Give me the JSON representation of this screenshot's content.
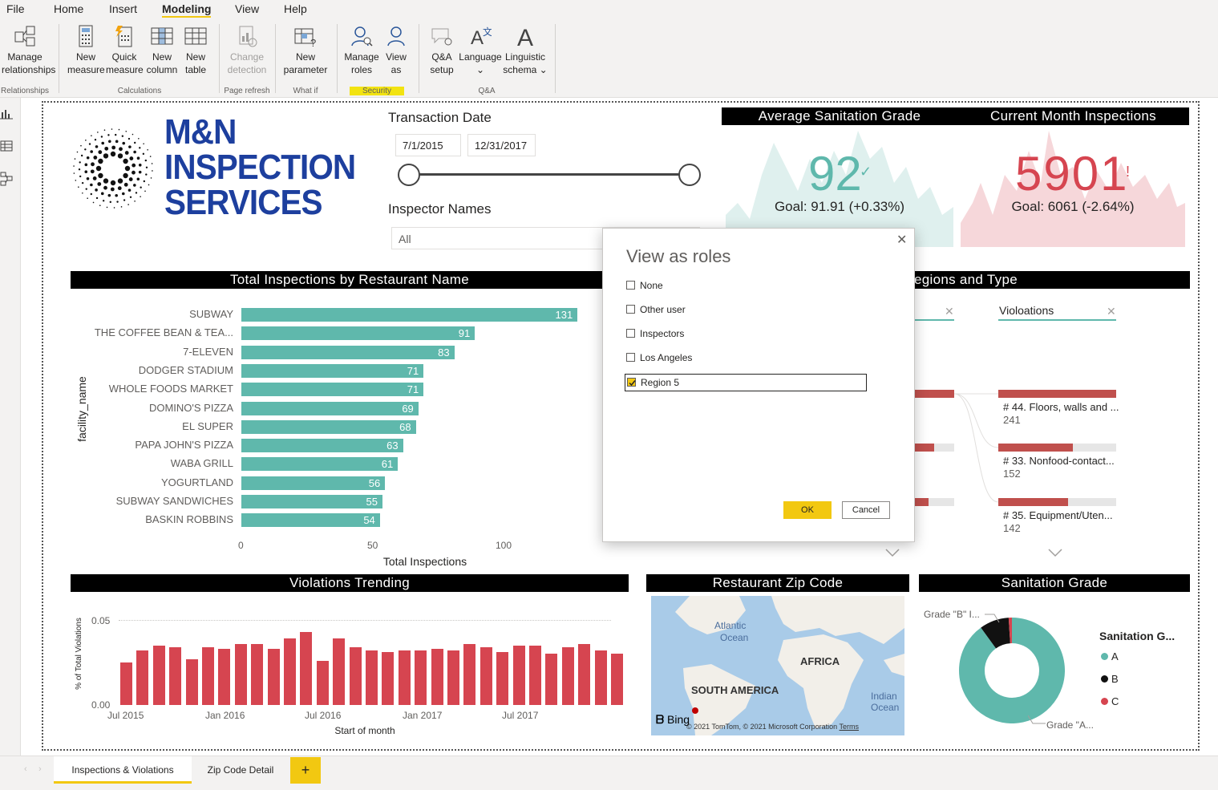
{
  "menu": [
    "File",
    "Home",
    "Insert",
    "Modeling",
    "View",
    "Help"
  ],
  "menu_active": "Modeling",
  "ribbon": {
    "buttons": [
      {
        "l1": "Manage",
        "l2": "relationships"
      },
      {
        "l1": "New",
        "l2": "measure"
      },
      {
        "l1": "Quick",
        "l2": "measure"
      },
      {
        "l1": "New",
        "l2": "column"
      },
      {
        "l1": "New",
        "l2": "table"
      },
      {
        "l1": "Change",
        "l2": "detection"
      },
      {
        "l1": "New",
        "l2": "parameter"
      },
      {
        "l1": "Manage",
        "l2": "roles"
      },
      {
        "l1": "View",
        "l2": "as"
      },
      {
        "l1": "Q&A",
        "l2": "setup"
      },
      {
        "l1": "Language",
        "l2": "⌄"
      },
      {
        "l1": "Linguistic",
        "l2": "schema ⌄"
      }
    ],
    "groups": [
      "Relationships",
      "Calculations",
      "Page refresh",
      "What if",
      "Security",
      "Q&A"
    ]
  },
  "logo": {
    "line1": "M&N",
    "line2": "INSPECTION",
    "line3": "SERVICES"
  },
  "slicers": {
    "date_title": "Transaction Date",
    "date_start": "7/1/2015",
    "date_end": "12/31/2017",
    "inspector_title": "Inspector Names",
    "inspector_value": "All"
  },
  "kpi1": {
    "title": "Average Sanitation Grade",
    "value": "92",
    "goal": "Goal: 91.91 (+0.33%)"
  },
  "kpi2": {
    "title": "Current Month Inspections",
    "value": "5901",
    "alert": "!",
    "goal": "Goal: 6061 (-2.64%)"
  },
  "restaurants": {
    "title": "Total Inspections by Restaurant Name",
    "ylabel": "facility_name",
    "xlabel": "Total Inspections",
    "ticks": [
      "0",
      "50",
      "100"
    ],
    "chart_data": {
      "type": "bar",
      "categories": [
        "SUBWAY",
        "THE COFFEE BEAN & TEA...",
        "7-ELEVEN",
        "DODGER STADIUM",
        "WHOLE FOODS MARKET",
        "DOMINO'S PIZZA",
        "EL SUPER",
        "PAPA JOHN'S PIZZA",
        "WABA GRILL",
        "YOGURTLAND",
        "SUBWAY SANDWICHES",
        "BASKIN ROBBINS"
      ],
      "values": [
        131,
        91,
        83,
        71,
        71,
        69,
        68,
        63,
        61,
        56,
        55,
        54
      ],
      "xlim": [
        0,
        140
      ]
    }
  },
  "regions": {
    "title_fragment": "egions and Type",
    "col2_header": "Violoations",
    "items": [
      {
        "label": "# 44. Floors, walls and ...",
        "value": "241"
      },
      {
        "label": "# 33. Nonfood-contact...",
        "value": "152"
      },
      {
        "label": "# 35. Equipment/Uten...",
        "value": "142"
      }
    ]
  },
  "trend": {
    "title": "Violations Trending",
    "ylabel": "% of Total Violations",
    "xlabel": "Start of month",
    "yticks": [
      "0.05",
      "0.00"
    ],
    "xticks": [
      "Jul 2015",
      "Jan 2016",
      "Jul 2016",
      "Jan 2017",
      "Jul 2017"
    ],
    "chart_data": {
      "type": "bar",
      "values": [
        0.025,
        0.032,
        0.035,
        0.034,
        0.027,
        0.034,
        0.033,
        0.036,
        0.036,
        0.033,
        0.039,
        0.043,
        0.026,
        0.039,
        0.034,
        0.032,
        0.031,
        0.032,
        0.032,
        0.033,
        0.032,
        0.036,
        0.034,
        0.031,
        0.035,
        0.035,
        0.03,
        0.034,
        0.036,
        0.032,
        0.03
      ],
      "ylim": [
        0,
        0.05
      ]
    }
  },
  "map": {
    "title": "Restaurant Zip Code",
    "labels": {
      "atlantic1": "Atlantic",
      "atlantic2": "Ocean",
      "africa": "AFRICA",
      "south_america": "SOUTH AMERICA",
      "indian1": "Indian",
      "indian2": "Ocean"
    },
    "bing": "Bing",
    "copyright": "© 2021 TomTom, © 2021 Microsoft Corporation",
    "terms": "Terms"
  },
  "grade": {
    "title": "Sanitation Grade",
    "legend_title": "Sanitation G...",
    "label_b": "Grade \"B\" I...",
    "label_a": "Grade \"A...",
    "chart_data": {
      "type": "pie",
      "categories": [
        "A",
        "B",
        "C"
      ],
      "values": [
        90,
        9,
        1
      ]
    },
    "colors": {
      "A": "#5fb8ac",
      "B": "#111111",
      "C": "#d64550"
    }
  },
  "dialog": {
    "title": "View as roles",
    "options": [
      {
        "label": "None",
        "checked": false
      },
      {
        "label": "Other user",
        "checked": false
      },
      {
        "label": "Inspectors",
        "checked": false
      },
      {
        "label": "Los Angeles",
        "checked": false
      },
      {
        "label": "Region 5",
        "checked": true
      }
    ],
    "ok": "OK",
    "cancel": "Cancel"
  },
  "tabs": {
    "items": [
      "Inspections & Violations",
      "Zip Code Detail"
    ],
    "add": "+"
  }
}
